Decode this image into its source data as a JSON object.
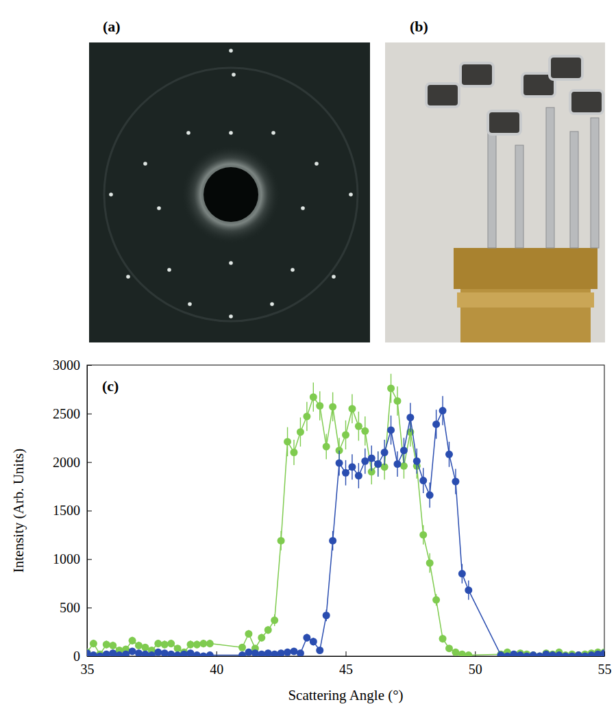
{
  "panels": [
    {
      "label": "(a)"
    },
    {
      "label": "(b)"
    }
  ],
  "chart_data": {
    "type": "line",
    "panel_label": "(c)",
    "x_label": "Scattering Angle (°)",
    "y_label": "Intensity (Arb. Units)",
    "marker": "circle",
    "grid": false,
    "xlim": [
      35,
      55
    ],
    "xticks": [
      35,
      40,
      45,
      50,
      55
    ],
    "ylim": [
      0,
      3000
    ],
    "yticks": [
      0,
      500,
      1000,
      1500,
      2000,
      2500,
      3000
    ],
    "x": [
      35,
      35.25,
      35.5,
      35.75,
      36,
      36.25,
      36.5,
      36.75,
      37,
      37.25,
      37.5,
      37.75,
      38,
      38.25,
      38.5,
      38.75,
      39,
      39.25,
      39.5,
      39.75,
      41,
      41.25,
      41.5,
      41.75,
      42,
      42.25,
      42.5,
      42.75,
      43,
      43.25,
      43.5,
      43.75,
      44,
      44.25,
      44.5,
      44.75,
      45,
      45.25,
      45.5,
      45.75,
      46,
      46.25,
      46.5,
      46.75,
      47,
      47.25,
      47.5,
      47.75,
      48,
      48.25,
      48.5,
      48.75,
      49,
      49.25,
      49.5,
      49.75,
      51,
      51.25,
      51.5,
      51.75,
      52,
      52.25,
      52.5,
      52.75,
      53,
      53.25,
      53.5,
      53.75,
      54,
      54.25,
      54.5,
      54.75,
      55
    ],
    "series": [
      {
        "color": "#7fcb4f",
        "values": [
          40,
          130,
          20,
          120,
          110,
          60,
          70,
          160,
          110,
          90,
          60,
          130,
          120,
          130,
          80,
          40,
          120,
          120,
          130,
          130,
          90,
          230,
          80,
          190,
          270,
          370,
          1190,
          2210,
          2100,
          2310,
          2470,
          2670,
          2580,
          2160,
          2570,
          2120,
          2280,
          2550,
          2370,
          2320,
          1900,
          1980,
          1950,
          2760,
          2630,
          1960,
          2310,
          1960,
          1250,
          960,
          580,
          180,
          80,
          40,
          20,
          10,
          20,
          40,
          10,
          30,
          20,
          10,
          0,
          30,
          20,
          40,
          10,
          20,
          10,
          20,
          30,
          40,
          40
        ],
        "errors": [
          30,
          40,
          30,
          40,
          40,
          30,
          30,
          40,
          40,
          30,
          30,
          40,
          40,
          40,
          30,
          30,
          40,
          40,
          40,
          40,
          30,
          40,
          30,
          40,
          40,
          60,
          100,
          150,
          130,
          150,
          150,
          150,
          150,
          130,
          150,
          130,
          150,
          150,
          150,
          150,
          130,
          130,
          130,
          150,
          150,
          130,
          150,
          130,
          100,
          100,
          60,
          40,
          30,
          30,
          30,
          30,
          30,
          30,
          30,
          30,
          30,
          30,
          30,
          30,
          30,
          30,
          30,
          30,
          30,
          30,
          30,
          30,
          30
        ]
      },
      {
        "color": "#2a4db0",
        "values": [
          30,
          10,
          0,
          20,
          30,
          10,
          20,
          50,
          30,
          20,
          10,
          40,
          30,
          20,
          10,
          20,
          30,
          10,
          0,
          10,
          10,
          40,
          30,
          20,
          30,
          20,
          30,
          40,
          50,
          30,
          190,
          150,
          60,
          420,
          1190,
          1990,
          1890,
          1950,
          1860,
          2010,
          2040,
          1980,
          2100,
          2330,
          1980,
          2120,
          2460,
          2010,
          1810,
          1660,
          2390,
          2530,
          2080,
          1800,
          850,
          680,
          10,
          0,
          20,
          10,
          0,
          10,
          0,
          20,
          10,
          10,
          0,
          0,
          10,
          0,
          10,
          20,
          30
        ],
        "errors": [
          30,
          30,
          30,
          30,
          30,
          30,
          30,
          30,
          30,
          30,
          30,
          30,
          30,
          30,
          30,
          30,
          30,
          30,
          30,
          30,
          30,
          30,
          30,
          30,
          30,
          30,
          30,
          30,
          30,
          30,
          40,
          40,
          30,
          60,
          100,
          130,
          130,
          130,
          130,
          130,
          130,
          130,
          130,
          150,
          130,
          130,
          150,
          130,
          130,
          130,
          150,
          150,
          130,
          130,
          100,
          100,
          30,
          30,
          30,
          30,
          30,
          30,
          30,
          30,
          30,
          30,
          30,
          30,
          30,
          30,
          30,
          30,
          30
        ]
      }
    ]
  }
}
